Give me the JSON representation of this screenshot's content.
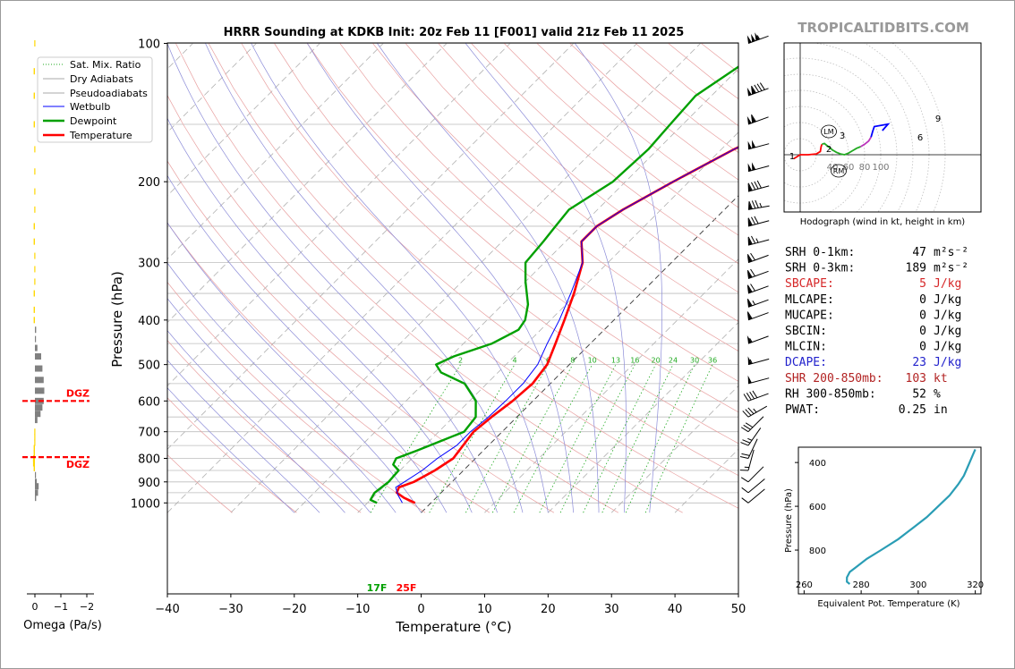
{
  "header": {
    "title": "HRRR Sounding at KDKB Init: 20z Feb 11 [F001] valid 21z Feb 11 2025",
    "watermark": "TROPICALTIDBITS.COM"
  },
  "chart_data": [
    {
      "type": "line",
      "name": "skew-T",
      "xlabel": "Temperature (°C)",
      "ylabel": "Pressure (hPa)",
      "xlim": [
        -40,
        50
      ],
      "ylim": [
        1050,
        100
      ],
      "y_scale": "log",
      "x_ticks": [
        "−40",
        "−30",
        "−20",
        "−10",
        "0",
        "10",
        "20",
        "30",
        "40",
        "50"
      ],
      "y_ticks": [
        100,
        200,
        300,
        400,
        500,
        600,
        700,
        800,
        900,
        1000
      ],
      "legend": [
        "Sat. Mix. Ratio",
        "Dry Adiabats",
        "Pseudoadiabats",
        "Wetbulb",
        "Dewpoint",
        "Temperature"
      ],
      "legend_position": "top-left",
      "series": [
        {
          "name": "Temperature",
          "color": "#ff0000",
          "points": [
            [
              -2.5,
              1000
            ],
            [
              -5,
              975
            ],
            [
              -7,
              950
            ],
            [
              -7.5,
              925
            ],
            [
              -6,
              900
            ],
            [
              -4.5,
              850
            ],
            [
              -3.5,
              800
            ],
            [
              -4,
              750
            ],
            [
              -4.5,
              700
            ],
            [
              -4,
              650
            ],
            [
              -3.2,
              600
            ],
            [
              -2.8,
              550
            ],
            [
              -3.5,
              500
            ],
            [
              -5.5,
              450
            ],
            [
              -7.8,
              400
            ],
            [
              -10.5,
              350
            ],
            [
              -14,
              300
            ],
            [
              -17.5,
              270
            ],
            [
              -17.5,
              250
            ],
            [
              -16,
              230
            ],
            [
              -12.5,
              200
            ],
            [
              -8,
              170
            ],
            [
              -3.8,
              150
            ],
            [
              -1,
              130
            ],
            [
              2,
              110
            ],
            [
              4,
              100
            ]
          ]
        },
        {
          "name": "Dewpoint",
          "color": "#00a000",
          "points": [
            [
              -8.5,
              1000
            ],
            [
              -10,
              985
            ],
            [
              -10.5,
              950
            ],
            [
              -10,
              900
            ],
            [
              -10.2,
              850
            ],
            [
              -12,
              825
            ],
            [
              -12.5,
              800
            ],
            [
              -10.5,
              770
            ],
            [
              -8,
              730
            ],
            [
              -6,
              700
            ],
            [
              -6.5,
              650
            ],
            [
              -9,
              600
            ],
            [
              -13.5,
              550
            ],
            [
              -19,
              520
            ],
            [
              -21,
              500
            ],
            [
              -19.5,
              480
            ],
            [
              -15.5,
              450
            ],
            [
              -13.5,
              420
            ],
            [
              -14,
              400
            ],
            [
              -16,
              370
            ],
            [
              -20,
              330
            ],
            [
              -23,
              300
            ],
            [
              -23.5,
              270
            ],
            [
              -24,
              250
            ],
            [
              -24.5,
              230
            ],
            [
              -22,
              200
            ],
            [
              -21.5,
              170
            ],
            [
              -22,
              150
            ],
            [
              -22.5,
              130
            ],
            [
              -20,
              110
            ],
            [
              -18,
              100
            ]
          ]
        },
        {
          "name": "Wetbulb",
          "color": "#0000ff",
          "points": [
            [
              -4.5,
              1000
            ],
            [
              -6.5,
              960
            ],
            [
              -8,
              925
            ],
            [
              -7.5,
              900
            ],
            [
              -6.5,
              850
            ],
            [
              -6,
              800
            ],
            [
              -5,
              750
            ],
            [
              -5,
              700
            ],
            [
              -4.5,
              650
            ],
            [
              -4.3,
              600
            ],
            [
              -4.3,
              550
            ],
            [
              -5,
              500
            ],
            [
              -6.8,
              450
            ],
            [
              -8.6,
              400
            ],
            [
              -11,
              350
            ],
            [
              -14,
              300
            ],
            [
              -17.5,
              270
            ],
            [
              -17.5,
              250
            ],
            [
              -16,
              230
            ],
            [
              -12.5,
              200
            ],
            [
              -8,
              170
            ],
            [
              -3.8,
              150
            ],
            [
              -1,
              130
            ],
            [
              2,
              110
            ],
            [
              4,
              100
            ]
          ]
        }
      ],
      "mix_ratio_labels": [
        "2",
        "4",
        "6",
        "8",
        "10",
        "13",
        "16",
        "20",
        "24",
        "30",
        "36"
      ],
      "surface_labels": {
        "dewpoint": "17F",
        "temperature": "25F"
      }
    },
    {
      "type": "bar",
      "name": "omega",
      "xlabel": "Omega (Pa/s)",
      "x_ticks": [
        "0",
        "−1",
        "−2"
      ],
      "dgz_label": "DGZ",
      "dgz_levels_hpa": [
        600,
        795
      ],
      "values": [
        [
          100,
          0.05
        ],
        [
          115,
          0.1
        ],
        [
          130,
          0.1
        ],
        [
          150,
          0.1
        ],
        [
          170,
          0.05
        ],
        [
          190,
          0.05
        ],
        [
          210,
          0.05
        ],
        [
          230,
          0.05
        ],
        [
          250,
          0.1
        ],
        [
          270,
          0.1
        ],
        [
          290,
          0.05
        ],
        [
          310,
          0.05
        ],
        [
          330,
          0.05
        ],
        [
          350,
          0.1
        ],
        [
          380,
          0.1
        ],
        [
          400,
          0.1
        ],
        [
          420,
          -0.1
        ],
        [
          440,
          -0.05
        ],
        [
          460,
          -0.2
        ],
        [
          480,
          -0.5
        ],
        [
          510,
          -0.6
        ],
        [
          540,
          -0.7
        ],
        [
          570,
          -0.75
        ],
        [
          600,
          -0.7
        ],
        [
          620,
          -0.6
        ],
        [
          640,
          -0.45
        ],
        [
          660,
          -0.2
        ],
        [
          700,
          0.05
        ],
        [
          720,
          0.05
        ],
        [
          740,
          0.05
        ],
        [
          760,
          0.1
        ],
        [
          780,
          0.1
        ],
        [
          800,
          0.15
        ],
        [
          820,
          0.15
        ],
        [
          840,
          0.1
        ],
        [
          870,
          -0.05
        ],
        [
          900,
          -0.15
        ],
        [
          920,
          -0.3
        ],
        [
          950,
          -0.25
        ],
        [
          975,
          -0.1
        ]
      ]
    },
    {
      "type": "line",
      "name": "hodograph",
      "caption": "Hodograph (wind in kt, height in km)",
      "x_ticks": [
        "40",
        "60",
        "80",
        "100"
      ],
      "height_labels": [
        "1",
        "2",
        "3",
        "6",
        "9"
      ],
      "markers": [
        "LM",
        "RM"
      ],
      "segments": [
        {
          "color": "#ff0000",
          "points": [
            [
              -8,
              -5
            ],
            [
              0,
              0
            ],
            [
              10,
              0
            ],
            [
              20,
              1
            ],
            [
              25,
              4
            ],
            [
              26,
              10
            ],
            [
              27,
              13
            ]
          ]
        },
        {
          "color": "#22aa22",
          "points": [
            [
              27,
              13
            ],
            [
              30,
              14
            ],
            [
              35,
              10
            ],
            [
              40,
              6
            ],
            [
              45,
              3
            ],
            [
              50,
              1
            ],
            [
              55,
              0
            ],
            [
              60,
              2
            ],
            [
              65,
              5
            ],
            [
              70,
              8
            ],
            [
              75,
              10
            ]
          ]
        },
        {
          "color": "#bb33bb",
          "points": [
            [
              75,
              10
            ],
            [
              80,
              13
            ],
            [
              85,
              17
            ],
            [
              88,
              22
            ]
          ]
        },
        {
          "color": "#0000ff",
          "points": [
            [
              88,
              22
            ],
            [
              90,
              29
            ],
            [
              92,
              35
            ],
            [
              109,
              38
            ],
            [
              102,
              30
            ]
          ]
        }
      ]
    },
    {
      "type": "line",
      "name": "theta-e profile",
      "xlabel": "Equivalent Pot. Temperature (K)",
      "ylabel": "Pressure (hPa)",
      "x_ticks": [
        "260",
        "280",
        "300",
        "320"
      ],
      "y_ticks": [
        "400",
        "600",
        "800"
      ],
      "xlim": [
        258,
        322
      ],
      "ylim": [
        1000,
        330
      ],
      "series": [
        {
          "name": "theta-e",
          "color": "#2a9db5",
          "points": [
            [
              276,
              955
            ],
            [
              275,
              945
            ],
            [
              275,
              925
            ],
            [
              276,
              900
            ],
            [
              278,
              880
            ],
            [
              282,
              840
            ],
            [
              287,
              800
            ],
            [
              293,
              750
            ],
            [
              298,
              700
            ],
            [
              303,
              650
            ],
            [
              307,
              600
            ],
            [
              311,
              550
            ],
            [
              314,
              500
            ],
            [
              316,
              460
            ],
            [
              317,
              430
            ],
            [
              318,
              400
            ],
            [
              319,
              370
            ],
            [
              320,
              340
            ]
          ]
        }
      ]
    }
  ],
  "indices": [
    {
      "label": "SRH 0-1km:",
      "value": "47",
      "unit": "m²s⁻²",
      "color": "#000000"
    },
    {
      "label": "SRH 0-3km:",
      "value": "189",
      "unit": "m²s⁻²",
      "color": "#000000"
    },
    {
      "label": "SBCAPE:",
      "value": "5",
      "unit": "J/kg",
      "color": "#d62728"
    },
    {
      "label": "MLCAPE:",
      "value": "0",
      "unit": "J/kg",
      "color": "#000000"
    },
    {
      "label": "MUCAPE:",
      "value": "0",
      "unit": "J/kg",
      "color": "#000000"
    },
    {
      "label": "SBCIN:",
      "value": "0",
      "unit": "J/kg",
      "color": "#000000"
    },
    {
      "label": "MLCIN:",
      "value": "0",
      "unit": "J/kg",
      "color": "#000000"
    },
    {
      "label": "DCAPE:",
      "value": "23",
      "unit": "J/kg",
      "color": "#2222cc"
    },
    {
      "label": "SHR 200-850mb:",
      "value": "103",
      "unit": "kt",
      "color": "#b22222"
    },
    {
      "label": "RH 300-850mb:",
      "value": "52",
      "unit": "%",
      "color": "#000000"
    },
    {
      "label": "PWAT:",
      "value": "0.25",
      "unit": "in",
      "color": "#000000"
    }
  ],
  "wind_barbs": [
    {
      "p": 100,
      "speed": 155,
      "dir": 250
    },
    {
      "p": 130,
      "speed": 140,
      "dir": 250
    },
    {
      "p": 150,
      "speed": 110,
      "dir": 250
    },
    {
      "p": 170,
      "speed": 100,
      "dir": 255
    },
    {
      "p": 190,
      "speed": 100,
      "dir": 255
    },
    {
      "p": 210,
      "speed": 90,
      "dir": 255
    },
    {
      "p": 230,
      "speed": 85,
      "dir": 260
    },
    {
      "p": 250,
      "speed": 80,
      "dir": 255
    },
    {
      "p": 275,
      "speed": 75,
      "dir": 255
    },
    {
      "p": 300,
      "speed": 70,
      "dir": 250
    },
    {
      "p": 325,
      "speed": 70,
      "dir": 250
    },
    {
      "p": 350,
      "speed": 70,
      "dir": 250
    },
    {
      "p": 375,
      "speed": 65,
      "dir": 250
    },
    {
      "p": 400,
      "speed": 60,
      "dir": 250
    },
    {
      "p": 450,
      "speed": 55,
      "dir": 250
    },
    {
      "p": 500,
      "speed": 55,
      "dir": 255
    },
    {
      "p": 550,
      "speed": 50,
      "dir": 255
    },
    {
      "p": 600,
      "speed": 40,
      "dir": 250
    },
    {
      "p": 650,
      "speed": 35,
      "dir": 240
    },
    {
      "p": 700,
      "speed": 30,
      "dir": 225
    },
    {
      "p": 750,
      "speed": 25,
      "dir": 215
    },
    {
      "p": 800,
      "speed": 20,
      "dir": 205
    },
    {
      "p": 850,
      "speed": 15,
      "dir": 195
    },
    {
      "p": 900,
      "speed": 10,
      "dir": 225
    },
    {
      "p": 950,
      "speed": 10,
      "dir": 230
    },
    {
      "p": 1000,
      "speed": 10,
      "dir": 230
    }
  ]
}
